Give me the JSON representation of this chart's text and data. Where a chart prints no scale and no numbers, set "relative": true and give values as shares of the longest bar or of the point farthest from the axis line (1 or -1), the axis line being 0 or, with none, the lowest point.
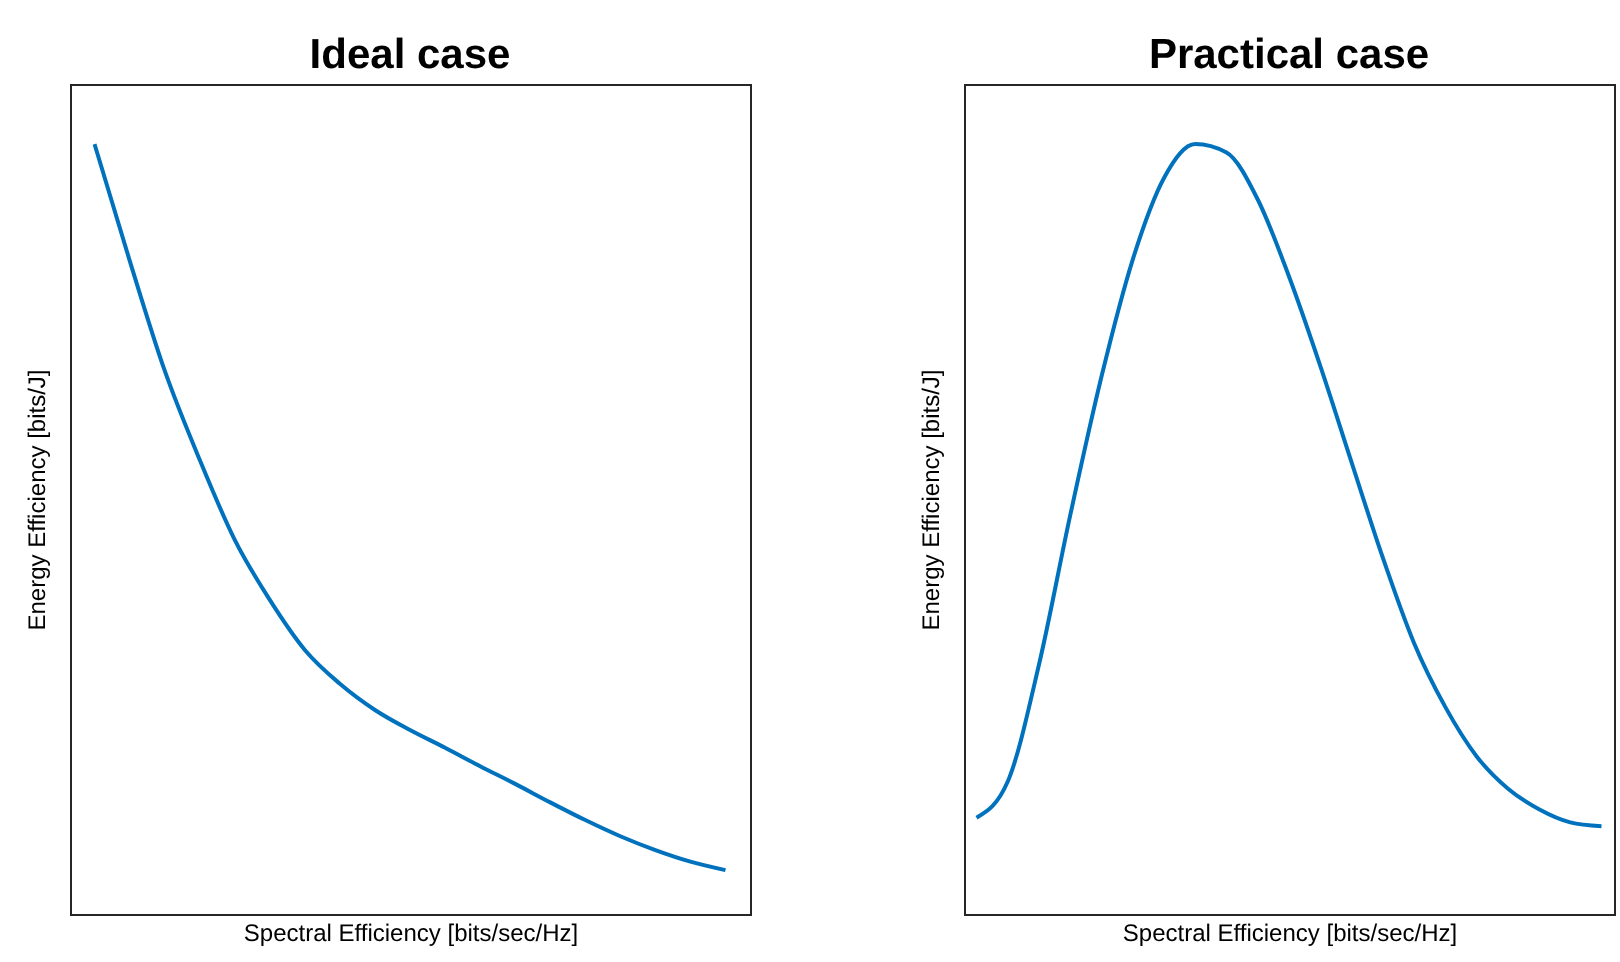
{
  "chart_data": [
    {
      "type": "line",
      "title": "Ideal case",
      "xlabel": "Spectral Efficiency [bits/sec/Hz]",
      "ylabel": "Energy Efficiency [bits/J]",
      "relative": true,
      "tick_labels": false,
      "categories": [
        null,
        null,
        null,
        null,
        null,
        null,
        null,
        null,
        null,
        null,
        null,
        null,
        null,
        null,
        null,
        null,
        null,
        null,
        null
      ],
      "series": [
        {
          "color": "#0072bd",
          "values": [
            1,
            0.849,
            0.706,
            0.59,
            0.486,
            0.408,
            0.343,
            0.299,
            0.265,
            0.239,
            0.216,
            0.192,
            0.169,
            0.145,
            0.122,
            0.101,
            0.083,
            0.068,
            0.057
          ]
        }
      ]
    },
    {
      "type": "line",
      "title": "Practical case",
      "xlabel": "Spectral Efficiency [bits/sec/Hz]",
      "ylabel": "Energy Efficiency [bits/J]",
      "relative": true,
      "tick_labels": false,
      "categories": [
        null,
        null,
        null,
        null,
        null,
        null,
        null,
        null,
        null,
        null,
        null,
        null,
        null,
        null,
        null,
        null,
        null,
        null,
        null,
        null,
        null
      ],
      "series": [
        {
          "color": "#0072bd",
          "values": [
            0.125,
            0.172,
            0.324,
            0.518,
            0.698,
            0.85,
            0.956,
            1,
            0.989,
            0.928,
            0.828,
            0.712,
            0.587,
            0.463,
            0.352,
            0.269,
            0.205,
            0.163,
            0.136,
            0.119,
            0.114
          ]
        }
      ]
    }
  ]
}
